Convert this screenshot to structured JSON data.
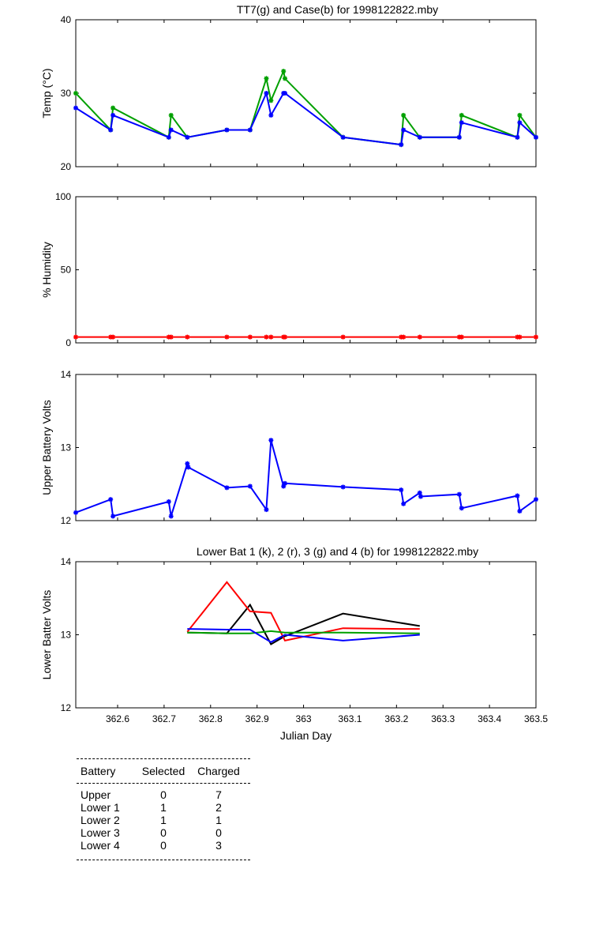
{
  "chart_data": [
    {
      "type": "line",
      "title": "TT7(g) and Case(b) for 1998122822.mby",
      "xlabel": "",
      "ylabel": "Temp  (°C)",
      "xlim": [
        362.51,
        363.5
      ],
      "ylim": [
        20,
        40
      ],
      "yticks": [
        "20",
        "30",
        "40"
      ],
      "grid": false,
      "series": [
        {
          "color": "#00a000",
          "x": [
            362.51,
            362.585,
            362.59,
            362.71,
            362.715,
            362.75,
            362.835,
            362.885,
            362.92,
            362.93,
            362.957,
            362.96,
            363.085,
            363.21,
            363.215,
            363.25,
            363.335,
            363.34,
            363.46,
            363.465,
            363.5
          ],
          "y": [
            30,
            25,
            28,
            24,
            27,
            24,
            25,
            25,
            32,
            29,
            33,
            32,
            24,
            23,
            27,
            24,
            24,
            27,
            24,
            27,
            24
          ]
        },
        {
          "color": "#0000ff",
          "x": [
            362.51,
            362.585,
            362.59,
            362.71,
            362.715,
            362.75,
            362.835,
            362.885,
            362.92,
            362.93,
            362.957,
            362.96,
            363.085,
            363.21,
            363.215,
            363.25,
            363.335,
            363.34,
            363.46,
            363.465,
            363.5
          ],
          "y": [
            28,
            25,
            27,
            24,
            25,
            24,
            25,
            25,
            30,
            27,
            30,
            30,
            24,
            23,
            25,
            24,
            24,
            26,
            24,
            26,
            24
          ]
        }
      ]
    },
    {
      "type": "line",
      "title": "",
      "xlabel": "",
      "ylabel": "% Humidity",
      "xlim": [
        362.51,
        363.5
      ],
      "ylim": [
        0,
        100
      ],
      "yticks": [
        "0",
        "50",
        "100"
      ],
      "grid": false,
      "series": [
        {
          "color": "#ff0000",
          "x": [
            362.51,
            362.585,
            362.59,
            362.71,
            362.715,
            362.75,
            362.835,
            362.885,
            362.92,
            362.93,
            362.957,
            362.96,
            363.085,
            363.21,
            363.215,
            363.25,
            363.335,
            363.34,
            363.46,
            363.465,
            363.5
          ],
          "y": [
            4,
            4,
            4,
            4,
            4,
            4,
            4,
            4,
            4,
            4,
            4,
            4,
            4,
            4,
            4,
            4,
            4,
            4,
            4,
            4,
            4
          ]
        }
      ]
    },
    {
      "type": "line",
      "title": "",
      "xlabel": "",
      "ylabel": "Upper Battery Volts",
      "xlim": [
        362.51,
        363.5
      ],
      "ylim": [
        12,
        14
      ],
      "yticks": [
        "12",
        "13",
        "14"
      ],
      "grid": false,
      "series": [
        {
          "color": "#0000ff",
          "x": [
            362.51,
            362.585,
            362.59,
            362.71,
            362.715,
            362.75,
            362.752,
            362.835,
            362.885,
            362.92,
            362.93,
            362.957,
            362.96,
            363.085,
            363.21,
            363.215,
            363.25,
            363.252,
            363.335,
            363.34,
            363.46,
            363.465,
            363.5
          ],
          "y": [
            12.11,
            12.29,
            12.06,
            12.26,
            12.06,
            12.78,
            12.73,
            12.45,
            12.47,
            12.15,
            13.1,
            12.47,
            12.51,
            12.46,
            12.42,
            12.23,
            12.38,
            12.33,
            12.36,
            12.17,
            12.34,
            12.13,
            12.29
          ]
        }
      ]
    },
    {
      "type": "line",
      "title": "Lower Bat 1 (k), 2 (r), 3 (g) and 4 (b) for 1998122822.mby",
      "xlabel": "Julian Day",
      "ylabel": "Lower Batter Volts",
      "xlim": [
        362.51,
        363.5
      ],
      "ylim": [
        12,
        14
      ],
      "yticks": [
        "12",
        "13",
        "14"
      ],
      "xticks": [
        "362.6",
        "362.7",
        "362.8",
        "362.9",
        "363",
        "363.1",
        "363.2",
        "363.3",
        "363.4",
        "363.5"
      ],
      "grid": false,
      "series": [
        {
          "color": "#000000",
          "x": [
            362.75,
            362.835,
            362.885,
            362.93,
            362.96,
            363.085,
            363.25
          ],
          "y": [
            13.03,
            13.02,
            13.41,
            12.87,
            12.98,
            13.29,
            13.12
          ]
        },
        {
          "color": "#ff0000",
          "x": [
            362.75,
            362.835,
            362.885,
            362.93,
            362.96,
            363.085,
            363.21,
            363.25
          ],
          "y": [
            13.04,
            13.72,
            13.32,
            13.3,
            12.92,
            13.09,
            13.08,
            13.08
          ]
        },
        {
          "color": "#00a000",
          "x": [
            362.75,
            362.835,
            362.885,
            362.93,
            362.96,
            363.085,
            363.25
          ],
          "y": [
            13.03,
            13.02,
            13.02,
            13.05,
            13.03,
            13.03,
            13.02
          ]
        },
        {
          "color": "#0000ff",
          "x": [
            362.75,
            362.835,
            362.885,
            362.93,
            362.96,
            363.085,
            363.25
          ],
          "y": [
            13.08,
            13.07,
            13.07,
            12.9,
            13.0,
            12.92,
            13.0
          ]
        }
      ]
    }
  ],
  "legend_table": {
    "headers": [
      "Battery",
      "Selected",
      "Charged"
    ],
    "rows": [
      [
        "Upper",
        "0",
        "7"
      ],
      [
        "Lower 1",
        "1",
        "2"
      ],
      [
        "Lower 2",
        "1",
        "1"
      ],
      [
        "Lower 3",
        "0",
        "0"
      ],
      [
        "Lower 4",
        "0",
        "3"
      ]
    ]
  }
}
